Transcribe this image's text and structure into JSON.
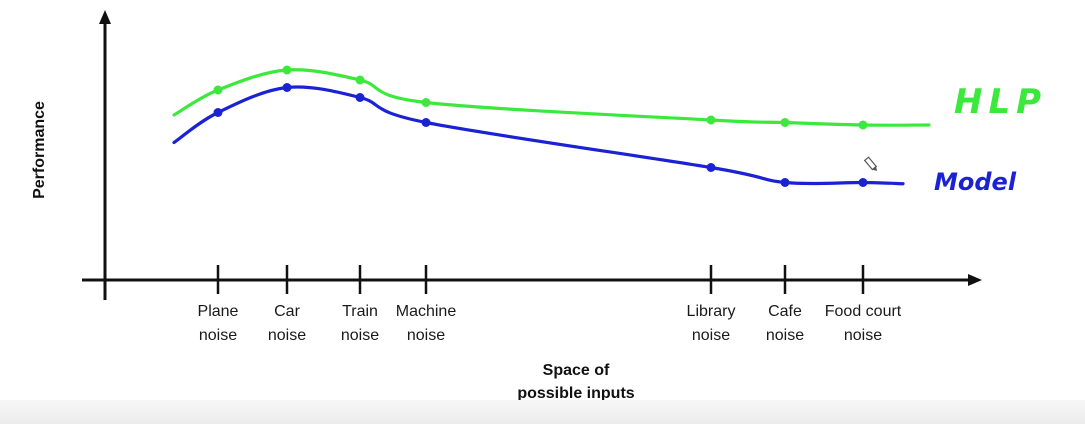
{
  "chart_data": {
    "type": "line",
    "xlabel": [
      "Space of",
      "possible inputs"
    ],
    "ylabel": "Performance",
    "categories": [
      [
        "Plane",
        "noise"
      ],
      [
        "Car",
        "noise"
      ],
      [
        "Train",
        "noise"
      ],
      [
        "Machine",
        "noise"
      ],
      [
        "Library",
        "noise"
      ],
      [
        "Cafe",
        "noise"
      ],
      [
        "Food court",
        "noise"
      ]
    ],
    "ylim": [
      0,
      100
    ],
    "grid": false,
    "legend": "none (series labels written at right end of lines)",
    "series": [
      {
        "name": "HLP",
        "color": "#3de83d",
        "values": [
          76,
          84,
          80,
          71,
          64,
          63,
          62
        ],
        "label_handwritten": true
      },
      {
        "name": "Model",
        "color": "#1a22d4",
        "values": [
          67,
          77,
          73,
          63,
          45,
          39,
          39
        ],
        "label_handwritten": true
      }
    ]
  }
}
